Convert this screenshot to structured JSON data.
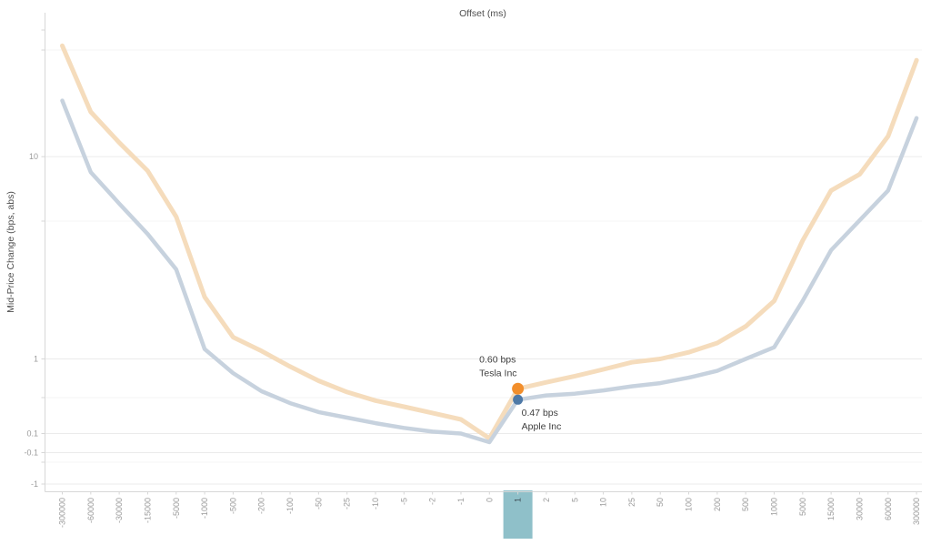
{
  "chart_data": {
    "type": "line",
    "title": "Offset (ms)",
    "xlabel": "Offset (ms)",
    "ylabel": "Mid-Price Change (bps, abs)",
    "y_scale": "symmetric log",
    "grid": true,
    "categories": [
      "-300000",
      "-60000",
      "-30000",
      "-15000",
      "-5000",
      "-1000",
      "-500",
      "-200",
      "-100",
      "-50",
      "-25",
      "-10",
      "-5",
      "-2",
      "-1",
      "0",
      "1",
      "2",
      "5",
      "10",
      "25",
      "50",
      "100",
      "200",
      "500",
      "1000",
      "5000",
      "15000",
      "30000",
      "60000",
      "300000"
    ],
    "y_ticks": [
      {
        "label": "10",
        "value": 10
      },
      {
        "label": "1",
        "value": 1
      },
      {
        "label": "0.1",
        "value": 0.1
      },
      {
        "label": "-0.1",
        "value": -0.1
      },
      {
        "label": "-1",
        "value": -1
      }
    ],
    "series": [
      {
        "name": "Tesla Inc",
        "line_color": "#f5dcbc",
        "marker_color": "#f28e2b",
        "values": [
          32,
          16,
          11.6,
          8.6,
          5.3,
          2.2,
          1.35,
          1.12,
          0.89,
          0.7,
          0.56,
          0.46,
          0.39,
          0.32,
          0.25,
          0.05,
          0.6,
          0.68,
          0.76,
          0.85,
          0.95,
          1.0,
          1.1,
          1.25,
          1.55,
          2.1,
          4.1,
          7.0,
          8.3,
          12.4,
          27.5
        ]
      },
      {
        "name": "Apple Inc",
        "line_color": "#c7d2de",
        "marker_color": "#4e79a7",
        "values": [
          18,
          8.5,
          6.1,
          4.4,
          3.0,
          1.15,
          0.8,
          0.57,
          0.43,
          0.33,
          0.27,
          0.21,
          0.16,
          0.12,
          0.1,
          0.01,
          0.47,
          0.52,
          0.54,
          0.58,
          0.63,
          0.67,
          0.74,
          0.83,
          1.0,
          1.18,
          2.1,
          3.7,
          5.1,
          7.0,
          15
        ]
      }
    ],
    "markers": [
      {
        "series": "Tesla Inc",
        "category": "1",
        "value": 0.6
      },
      {
        "series": "Apple Inc",
        "category": "1",
        "value": 0.47
      }
    ],
    "annotations": [
      {
        "series": "Tesla Inc",
        "lines": [
          "0.60 bps",
          "Tesla Inc"
        ]
      },
      {
        "series": "Apple Inc",
        "lines": [
          "0.47 bps",
          "Apple Inc"
        ]
      }
    ],
    "highlighted_category": "1",
    "highlight_color": "#8fc0c9",
    "highlight_label_color": "#3b4a52",
    "tick_label_color": "#9b9b9b"
  }
}
